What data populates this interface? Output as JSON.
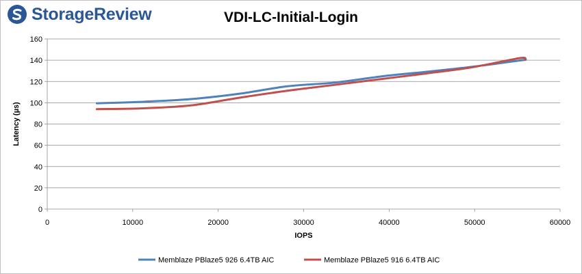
{
  "brand": {
    "name": "StorageReview"
  },
  "chart_data": {
    "type": "line",
    "title": "VDI-LC-Initial-Login",
    "xlabel": "IOPS",
    "ylabel": "Latency (µs)",
    "xlim": [
      0,
      60000
    ],
    "ylim": [
      0,
      160
    ],
    "xticks": [
      0,
      10000,
      20000,
      30000,
      40000,
      50000,
      60000
    ],
    "yticks": [
      0,
      20,
      40,
      60,
      80,
      100,
      120,
      140,
      160
    ],
    "grid": "horizontal",
    "legend_position": "bottom",
    "series": [
      {
        "name": "Memblaze PBlaze5 926 6.4TB AIC",
        "color": "#4f81bd",
        "points": [
          [
            5800,
            99.5
          ],
          [
            11400,
            101
          ],
          [
            16900,
            103.5
          ],
          [
            22500,
            108.5
          ],
          [
            28100,
            115.5
          ],
          [
            33700,
            119
          ],
          [
            39300,
            125
          ],
          [
            44800,
            129.5
          ],
          [
            50400,
            134.5
          ],
          [
            56000,
            140.5
          ]
        ]
      },
      {
        "name": "Memblaze PBlaze5 916 6.4TB AIC",
        "color": "#c0504d",
        "points": [
          [
            5800,
            94
          ],
          [
            11300,
            94.8
          ],
          [
            16800,
            97.5
          ],
          [
            22300,
            104.5
          ],
          [
            27800,
            111
          ],
          [
            33300,
            116.5
          ],
          [
            38800,
            122
          ],
          [
            44300,
            127.5
          ],
          [
            49800,
            133.5
          ],
          [
            55300,
            142
          ],
          [
            55900,
            140.5
          ]
        ]
      }
    ]
  }
}
